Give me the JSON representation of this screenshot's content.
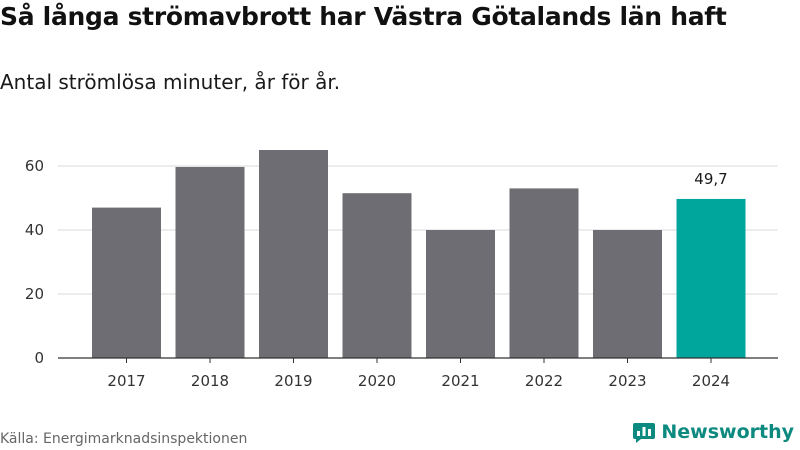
{
  "title": "Så långa strömavbrott har Västra Götalands län haft",
  "subtitle": "Antal strömlösa minuter, år för år.",
  "source": "Källa: Energimarknadsinspektionen",
  "brand": {
    "name": "Newsworthy",
    "icon": "newsworthy-logo-icon"
  },
  "colors": {
    "bar": "#6e6d73",
    "highlight": "#00a69c",
    "grid": "#d9d9d9",
    "axis": "#333333",
    "brand": "#0d8a80"
  },
  "chart_data": {
    "type": "bar",
    "title": "Så långa strömavbrott har Västra Götalands län haft",
    "subtitle": "Antal strömlösa minuter, år för år.",
    "xlabel": "",
    "ylabel": "",
    "categories": [
      "2017",
      "2018",
      "2019",
      "2020",
      "2021",
      "2022",
      "2023",
      "2024"
    ],
    "values": [
      47,
      59.7,
      65,
      51.5,
      40,
      53,
      40,
      49.7
    ],
    "ylim": [
      0,
      70
    ],
    "yticks": [
      0,
      20,
      40,
      60
    ],
    "grid": true,
    "highlight_index": 7,
    "annotations": [
      {
        "category": "2024",
        "label": "49,7"
      }
    ]
  }
}
